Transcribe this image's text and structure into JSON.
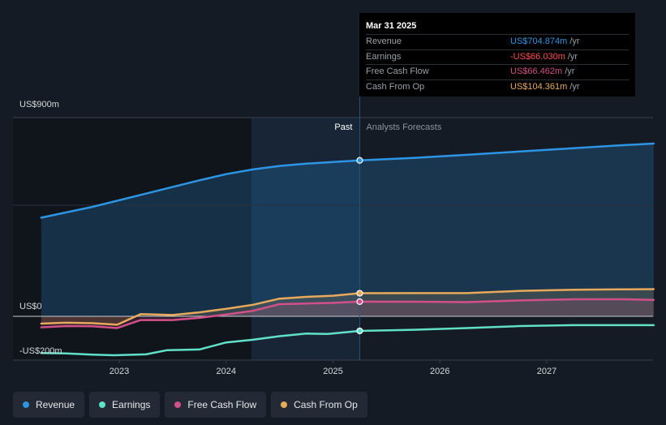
{
  "chart_data": {
    "type": "line",
    "y_axis": {
      "labels": [
        "US$900m",
        "US$0",
        "-US$200m"
      ],
      "values": [
        900,
        0,
        -200
      ],
      "ylim": [
        -200,
        900
      ]
    },
    "x_axis": {
      "ticks": [
        "2023",
        "2024",
        "2025",
        "2026",
        "2027"
      ],
      "xlim": [
        2022.27,
        2028.0
      ]
    },
    "divider_x": 2025.25,
    "divider_labels": {
      "past": "Past",
      "forecast": "Analysts Forecasts"
    },
    "series": [
      {
        "name": "Revenue",
        "color": "#2e95e4",
        "fill": true,
        "points": [
          [
            2022.27,
            446
          ],
          [
            2022.75,
            495
          ],
          [
            2023.25,
            555
          ],
          [
            2023.75,
            615
          ],
          [
            2024.0,
            643
          ],
          [
            2024.25,
            664
          ],
          [
            2024.5,
            680
          ],
          [
            2024.75,
            690
          ],
          [
            2025.0,
            698
          ],
          [
            2025.25,
            704.874
          ],
          [
            2025.75,
            716
          ],
          [
            2026.25,
            730
          ],
          [
            2026.75,
            745
          ],
          [
            2027.25,
            760
          ],
          [
            2027.75,
            775
          ],
          [
            2028.0,
            781
          ]
        ],
        "marker_at": 2025.25
      },
      {
        "name": "Earnings",
        "color": "#61e0c8",
        "fill": false,
        "points": [
          [
            2022.27,
            -166
          ],
          [
            2022.5,
            -168
          ],
          [
            2022.75,
            -173
          ],
          [
            2022.95,
            -176
          ],
          [
            2023.25,
            -172
          ],
          [
            2023.45,
            -153
          ],
          [
            2023.75,
            -150
          ],
          [
            2024.0,
            -118
          ],
          [
            2024.25,
            -106
          ],
          [
            2024.5,
            -90
          ],
          [
            2024.75,
            -78
          ],
          [
            2024.95,
            -80
          ],
          [
            2025.25,
            -66.03
          ],
          [
            2025.75,
            -61
          ],
          [
            2026.25,
            -53
          ],
          [
            2026.75,
            -44
          ],
          [
            2027.25,
            -40
          ],
          [
            2027.75,
            -40
          ],
          [
            2028.0,
            -40
          ]
        ],
        "marker_at": 2025.25
      },
      {
        "name": "Free Cash Flow",
        "color": "#d2508a",
        "fill": true,
        "points": [
          [
            2022.27,
            -50
          ],
          [
            2022.5,
            -44
          ],
          [
            2022.75,
            -45
          ],
          [
            2022.98,
            -53
          ],
          [
            2023.2,
            -17
          ],
          [
            2023.5,
            -17
          ],
          [
            2023.75,
            -7
          ],
          [
            2024.0,
            8
          ],
          [
            2024.25,
            25
          ],
          [
            2024.5,
            55
          ],
          [
            2024.75,
            58
          ],
          [
            2025.0,
            61
          ],
          [
            2025.25,
            66.462
          ],
          [
            2025.75,
            66
          ],
          [
            2026.25,
            64
          ],
          [
            2026.75,
            72
          ],
          [
            2027.25,
            77
          ],
          [
            2027.75,
            77
          ],
          [
            2028.0,
            74
          ]
        ],
        "marker_at": 2025.25
      },
      {
        "name": "Cash From Op",
        "color": "#e7aa5c",
        "fill": true,
        "points": [
          [
            2022.27,
            -33
          ],
          [
            2022.5,
            -29
          ],
          [
            2022.75,
            -31
          ],
          [
            2022.98,
            -38
          ],
          [
            2023.2,
            10
          ],
          [
            2023.5,
            6
          ],
          [
            2023.75,
            18
          ],
          [
            2024.0,
            34
          ],
          [
            2024.25,
            52
          ],
          [
            2024.5,
            80
          ],
          [
            2024.75,
            88
          ],
          [
            2025.0,
            93
          ],
          [
            2025.25,
            104.361
          ],
          [
            2025.75,
            105
          ],
          [
            2026.25,
            105
          ],
          [
            2026.75,
            115
          ],
          [
            2027.25,
            120
          ],
          [
            2027.75,
            122
          ],
          [
            2028.0,
            123
          ]
        ],
        "marker_at": 2025.25
      }
    ]
  },
  "tooltip": {
    "date": "Mar 31 2025",
    "rows": [
      {
        "label": "Revenue",
        "value": "US$704.874m",
        "unit": "/yr",
        "color": "#2e95e4"
      },
      {
        "label": "Earnings",
        "value": "-US$66.030m",
        "unit": "/yr",
        "color": "#ff4d4d"
      },
      {
        "label": "Free Cash Flow",
        "value": "US$66.462m",
        "unit": "/yr",
        "color": "#d2508a"
      },
      {
        "label": "Cash From Op",
        "value": "US$104.361m",
        "unit": "/yr",
        "color": "#e7aa5c"
      }
    ]
  },
  "legend": [
    {
      "label": "Revenue",
      "color": "#2e95e4"
    },
    {
      "label": "Earnings",
      "color": "#61e0c8"
    },
    {
      "label": "Free Cash Flow",
      "color": "#d2508a"
    },
    {
      "label": "Cash From Op",
      "color": "#e7aa5c"
    }
  ]
}
